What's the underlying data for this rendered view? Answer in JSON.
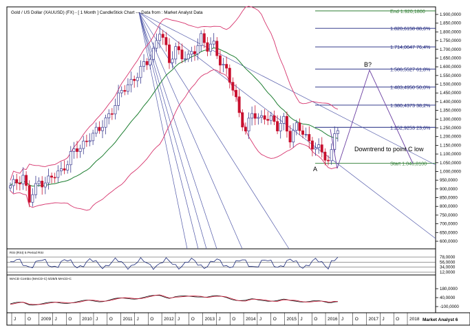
{
  "header": {
    "title": "Gold / US Dollar (XAUUSD) (FX) -  [ 1 Month ] CandleStick Chart --- Data from : Market Analyst Data"
  },
  "chart_data": {
    "type": "candlestick",
    "price_axis": {
      "min": 550,
      "max": 1925,
      "ticks": [
        600,
        650,
        700,
        750,
        800,
        850,
        900,
        950,
        1000,
        1050,
        1100,
        1150,
        1200,
        1250,
        1300,
        1350,
        1400,
        1450,
        1500,
        1550,
        1600,
        1650,
        1700,
        1750,
        1800,
        1850,
        1900
      ]
    },
    "fibonacci_levels": [
      {
        "label": "End 1.920,1800",
        "value": 1920.18,
        "color": "#2e7d32"
      },
      {
        "label": "1.820,6158 88,6%",
        "value": 1820.6158,
        "color": "#1a237e"
      },
      {
        "label": "1.714,0647 76,4%",
        "value": 1714.0647,
        "color": "#1a237e"
      },
      {
        "label": "1.586,5527 61,8%",
        "value": 1586.5527,
        "color": "#1a237e"
      },
      {
        "label": "1.483,4950 50,0%",
        "value": 1483.495,
        "color": "#1a237e"
      },
      {
        "label": "1.380,4373 38,2%",
        "value": 1380.4373,
        "color": "#1a237e"
      },
      {
        "label": "1.252,9253 23,6%",
        "value": 1252.9253,
        "color": "#1a237e"
      },
      {
        "label": "Start 1.046,8100",
        "value": 1046.81,
        "color": "#2e7d32"
      }
    ],
    "annotations": {
      "b_label": "B?",
      "a_label": "A",
      "downtrend_text": "Downtrend to point C low"
    },
    "x_axis": {
      "labels": [
        "J",
        "O",
        "2009",
        "J",
        "O",
        "2010",
        "J",
        "O",
        "2011",
        "J",
        "O",
        "2012",
        "J",
        "O",
        "2013",
        "J",
        "O",
        "2014",
        "J",
        "O",
        "2015",
        "J",
        "O",
        "2016",
        "J",
        "O",
        "2017",
        "J",
        "O",
        "2018"
      ],
      "footer_label": "Market Analyst 6"
    },
    "rsi_panel": {
      "title": "RSI (RSI) 5 Period RSI",
      "ticks": [
        {
          "label": "78,0000",
          "value": 78
        },
        {
          "label": "56,0000",
          "value": 56
        },
        {
          "label": "34,0000",
          "value": 34
        },
        {
          "label": "12,0000",
          "value": 12
        }
      ]
    },
    "macd_panel": {
      "title": "MACD Combo (MACD-C) 5/25/5 MACD-C",
      "ticks": [
        {
          "label": "180,0000",
          "value": 180
        },
        {
          "label": "40,0000",
          "value": 40
        },
        {
          "label": "-100,0000",
          "value": -100
        }
      ]
    },
    "colors": {
      "up": "#3b3b8f",
      "down": "#c8102e",
      "bollinger": "#d6336c",
      "sma": "#1b7d2f",
      "fan": "#5058a8",
      "projection": "#6a3ea1",
      "grid": "#222222"
    }
  }
}
